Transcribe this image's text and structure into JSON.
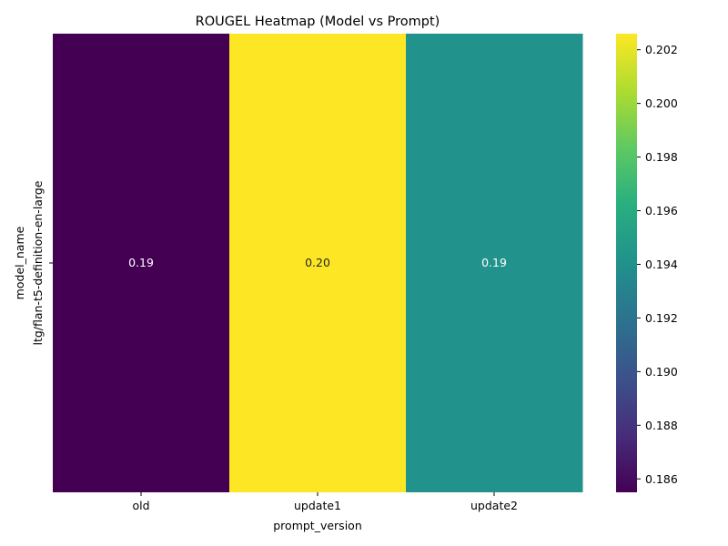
{
  "chart_data": {
    "type": "heatmap",
    "title": "ROUGEL Heatmap (Model vs Prompt)",
    "xlabel": "prompt_version",
    "ylabel": "model_name",
    "x_categories": [
      "old",
      "update1",
      "update2"
    ],
    "y_categories": [
      "ltg/flan-t5-definition-en-large"
    ],
    "values": [
      [
        0.1855,
        0.2026,
        0.1941
      ]
    ],
    "annotations": [
      [
        "0.19",
        "0.20",
        "0.19"
      ]
    ],
    "colormap": "viridis",
    "colorbar": {
      "range": [
        0.1855,
        0.2026
      ],
      "ticks": [
        0.186,
        0.188,
        0.19,
        0.192,
        0.194,
        0.196,
        0.198,
        0.2,
        0.202
      ],
      "tick_labels": [
        "0.186",
        "0.188",
        "0.190",
        "0.192",
        "0.194",
        "0.196",
        "0.198",
        "0.200",
        "0.202"
      ]
    }
  }
}
